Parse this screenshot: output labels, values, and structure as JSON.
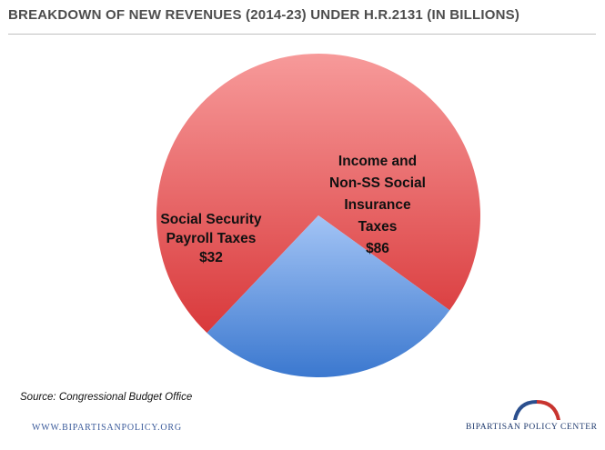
{
  "title": "BREAKDOWN OF NEW REVENUES (2014-23) UNDER H.R.2131 (IN BILLIONS)",
  "chart_data": {
    "type": "pie",
    "title": "BREAKDOWN OF NEW REVENUES (2014-23) UNDER H.R.2131 (IN BILLIONS)",
    "slices": [
      {
        "label_lines": [
          "Income and",
          "Non-SS Social",
          "Insurance",
          "Taxes",
          "$86"
        ],
        "value": 86,
        "color_light": "#f79a9a",
        "color_dark": "#d9393b"
      },
      {
        "label_lines": [
          "Social Security",
          "Payroll Taxes",
          "$32"
        ],
        "value": 32,
        "color_light": "#a3c4f5",
        "color_dark": "#3b78cf"
      }
    ]
  },
  "source": "Source: Congressional Budget Office",
  "footer": {
    "website": "WWW.BIPARTISANPOLICY.ORG",
    "organization": "BIPARTISAN POLICY CENTER",
    "logo_colors": {
      "blue": "#2b4f8e",
      "red": "#c8342f"
    }
  }
}
